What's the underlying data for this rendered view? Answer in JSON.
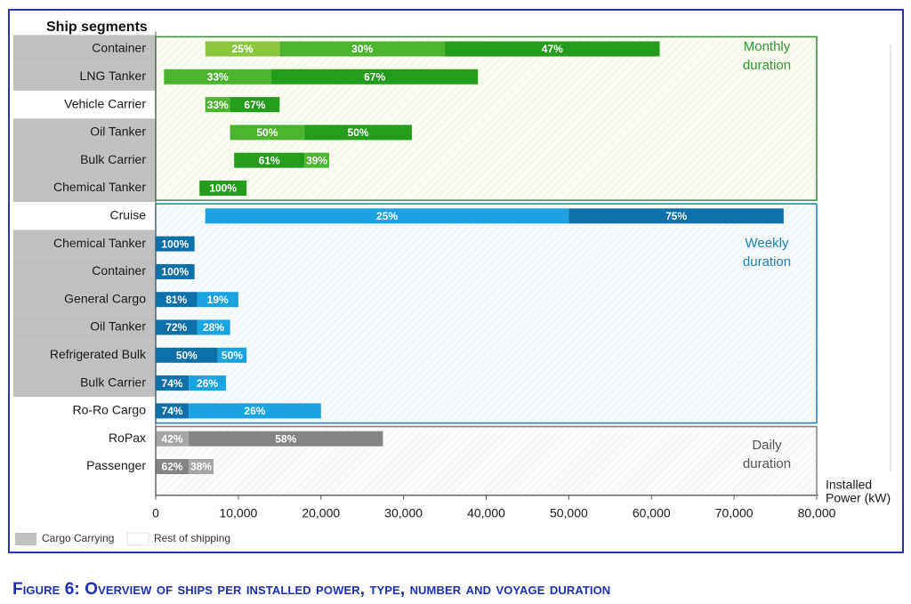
{
  "chart_data": {
    "type": "bar",
    "orientation": "horizontal",
    "stacked": true,
    "title": "Ship segments",
    "xlabel": "Installed Power (kW)",
    "xlabel_lines": [
      "Installed",
      "Power (kW)"
    ],
    "xlim": [
      0,
      80000
    ],
    "xticks": [
      0,
      10000,
      20000,
      30000,
      40000,
      50000,
      60000,
      70000,
      80000
    ],
    "xtick_labels": [
      "0",
      "10,000",
      "20,000",
      "30,000",
      "40,000",
      "50,000",
      "60,000",
      "70,000",
      "80,000"
    ],
    "groups": [
      {
        "key": "monthly",
        "label_lines": [
          "Monthly",
          "duration"
        ],
        "color": "#2e9a2e"
      },
      {
        "key": "weekly",
        "label_lines": [
          "Weekly",
          "duration"
        ],
        "color": "#1d7fb8"
      },
      {
        "key": "daily",
        "label_lines": [
          "Daily",
          "duration"
        ],
        "color": "#555555"
      }
    ],
    "legend": [
      {
        "label": "Cargo Carrying",
        "color": "#c0c0c0"
      },
      {
        "label": "Rest of shipping",
        "color": "#ffffff"
      }
    ],
    "rows": [
      {
        "label": "Container",
        "group": "monthly",
        "cargo": true,
        "start": 6000,
        "segments": [
          {
            "value": 9000,
            "label": "25%",
            "color": "#8cc63f"
          },
          {
            "value": 20000,
            "label": "30%",
            "color": "#4cb52e"
          },
          {
            "value": 26000,
            "label": "47%",
            "color": "#249c1c"
          }
        ]
      },
      {
        "label": "LNG Tanker",
        "group": "monthly",
        "cargo": true,
        "start": 1000,
        "segments": [
          {
            "value": 13000,
            "label": "33%",
            "color": "#4cb52e"
          },
          {
            "value": 25000,
            "label": "67%",
            "color": "#249c1c"
          }
        ]
      },
      {
        "label": "Vehicle Carrier",
        "group": "monthly",
        "cargo": false,
        "start": 6000,
        "segments": [
          {
            "value": 3000,
            "label": "33%",
            "color": "#4cb52e"
          },
          {
            "value": 6000,
            "label": "67%",
            "color": "#249c1c"
          }
        ]
      },
      {
        "label": "Oil Tanker",
        "group": "monthly",
        "cargo": true,
        "start": 9000,
        "segments": [
          {
            "value": 9000,
            "label": "50%",
            "color": "#4cb52e"
          },
          {
            "value": 13000,
            "label": "50%",
            "color": "#249c1c"
          }
        ]
      },
      {
        "label": "Bulk Carrier",
        "group": "monthly",
        "cargo": true,
        "start": 9500,
        "segments": [
          {
            "value": 8500,
            "label": "61%",
            "color": "#249c1c"
          },
          {
            "value": 3000,
            "label": "39%",
            "color": "#4cb52e"
          }
        ]
      },
      {
        "label": "Chemical Tanker",
        "group": "monthly",
        "cargo": true,
        "start": 5300,
        "segments": [
          {
            "value": 5700,
            "label": "100%",
            "color": "#249c1c"
          }
        ]
      },
      {
        "label": "Cruise",
        "group": "weekly",
        "cargo": false,
        "start": 6000,
        "segments": [
          {
            "value": 44000,
            "label": "25%",
            "color": "#1aa3e0"
          },
          {
            "value": 26000,
            "label": "75%",
            "color": "#0e70a8"
          }
        ]
      },
      {
        "label": "Chemical Tanker",
        "group": "weekly",
        "cargo": true,
        "start": 0,
        "segments": [
          {
            "value": 4700,
            "label": "100%",
            "color": "#0e70a8"
          }
        ]
      },
      {
        "label": "Container",
        "group": "weekly",
        "cargo": true,
        "start": 0,
        "segments": [
          {
            "value": 4700,
            "label": "100%",
            "color": "#0e70a8"
          }
        ]
      },
      {
        "label": "General Cargo",
        "group": "weekly",
        "cargo": true,
        "start": 0,
        "segments": [
          {
            "value": 5000,
            "label": "81%",
            "color": "#0e70a8"
          },
          {
            "value": 5000,
            "label": "19%",
            "color": "#1aa3e0"
          }
        ]
      },
      {
        "label": "Oil Tanker",
        "group": "weekly",
        "cargo": true,
        "start": 0,
        "segments": [
          {
            "value": 5000,
            "label": "72%",
            "color": "#0e70a8"
          },
          {
            "value": 4000,
            "label": "28%",
            "color": "#1aa3e0"
          }
        ]
      },
      {
        "label": "Refrigerated Bulk",
        "group": "weekly",
        "cargo": true,
        "start": 0,
        "segments": [
          {
            "value": 7500,
            "label": "50%",
            "color": "#0e70a8"
          },
          {
            "value": 3500,
            "label": "50%",
            "color": "#1aa3e0"
          }
        ]
      },
      {
        "label": "Bulk Carrier",
        "group": "weekly",
        "cargo": true,
        "start": 0,
        "segments": [
          {
            "value": 4000,
            "label": "74%",
            "color": "#0e70a8"
          },
          {
            "value": 4500,
            "label": "26%",
            "color": "#1aa3e0"
          }
        ]
      },
      {
        "label": "Ro-Ro Cargo",
        "group": "weekly",
        "cargo": false,
        "start": 0,
        "segments": [
          {
            "value": 4000,
            "label": "74%",
            "color": "#0e70a8"
          },
          {
            "value": 16000,
            "label": "26%",
            "color": "#1aa3e0"
          }
        ]
      },
      {
        "label": "RoPax",
        "group": "daily",
        "cargo": false,
        "start": 0,
        "segments": [
          {
            "value": 4000,
            "label": "42%",
            "color": "#a6a6a6"
          },
          {
            "value": 23500,
            "label": "58%",
            "color": "#858585"
          }
        ]
      },
      {
        "label": "Passenger",
        "group": "daily",
        "cargo": false,
        "start": 0,
        "segments": [
          {
            "value": 4000,
            "label": "62%",
            "color": "#858585"
          },
          {
            "value": 3000,
            "label": "38%",
            "color": "#a6a6a6"
          }
        ]
      }
    ]
  },
  "caption": "Figure 6: Overview of ships per installed power, type, number and voyage duration"
}
